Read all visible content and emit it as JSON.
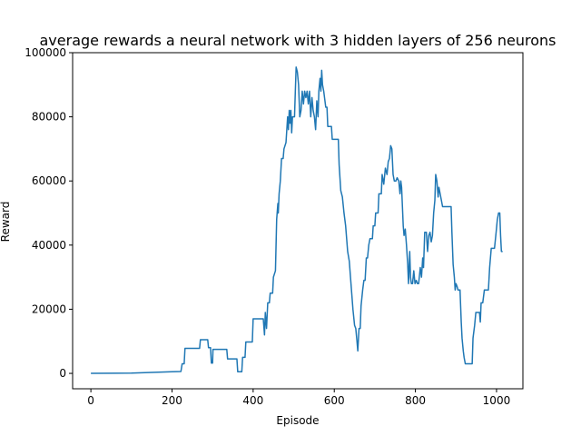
{
  "chart_data": {
    "type": "line",
    "title": "average rewards a neural network with 3 hidden layers of 256 neurons",
    "xlabel": "Episode",
    "ylabel": "Reward",
    "xlim": [
      -45,
      1065
    ],
    "ylim": [
      -4800,
      100000
    ],
    "xticks": [
      0,
      200,
      400,
      600,
      800,
      1000
    ],
    "xtick_labels": [
      "0",
      "200",
      "400",
      "600",
      "800",
      "1000"
    ],
    "yticks": [
      0,
      20000,
      40000,
      60000,
      80000,
      100000
    ],
    "ytick_labels": [
      "0",
      "20000",
      "40000",
      "60000",
      "80000",
      "100000"
    ],
    "grid": false,
    "legend": "none",
    "series": [
      {
        "color": "#1f77b4",
        "points": [
          [
            0,
            0
          ],
          [
            100,
            100
          ],
          [
            200,
            500
          ],
          [
            222,
            600
          ],
          [
            225,
            3000
          ],
          [
            230,
            3000
          ],
          [
            232,
            7800
          ],
          [
            268,
            7800
          ],
          [
            270,
            10500
          ],
          [
            288,
            10500
          ],
          [
            290,
            8000
          ],
          [
            295,
            8000
          ],
          [
            297,
            3200
          ],
          [
            300,
            3200
          ],
          [
            301,
            7500
          ],
          [
            335,
            7500
          ],
          [
            337,
            4500
          ],
          [
            360,
            4500
          ],
          [
            362,
            500
          ],
          [
            372,
            500
          ],
          [
            374,
            5000
          ],
          [
            380,
            5000
          ],
          [
            382,
            9800
          ],
          [
            398,
            9800
          ],
          [
            400,
            17000
          ],
          [
            425,
            17000
          ],
          [
            428,
            12000
          ],
          [
            430,
            19000
          ],
          [
            433,
            14000
          ],
          [
            436,
            22000
          ],
          [
            440,
            22000
          ],
          [
            442,
            25000
          ],
          [
            448,
            25000
          ],
          [
            450,
            30000
          ],
          [
            455,
            32000
          ],
          [
            458,
            48000
          ],
          [
            461,
            53000
          ],
          [
            462,
            50000
          ],
          [
            464,
            56000
          ],
          [
            467,
            60000
          ],
          [
            470,
            67000
          ],
          [
            474,
            67000
          ],
          [
            476,
            70000
          ],
          [
            481,
            72000
          ],
          [
            485,
            80000
          ],
          [
            487,
            76000
          ],
          [
            489,
            82000
          ],
          [
            491,
            78000
          ],
          [
            493,
            82000
          ],
          [
            495,
            75000
          ],
          [
            497,
            80000
          ],
          [
            500,
            80000
          ],
          [
            502,
            80000
          ],
          [
            504,
            88000
          ],
          [
            506,
            95500
          ],
          [
            509,
            94000
          ],
          [
            512,
            90000
          ],
          [
            515,
            80000
          ],
          [
            518,
            82000
          ],
          [
            521,
            88000
          ],
          [
            524,
            84000
          ],
          [
            527,
            88000
          ],
          [
            530,
            86000
          ],
          [
            533,
            88000
          ],
          [
            536,
            84000
          ],
          [
            539,
            88000
          ],
          [
            542,
            80000
          ],
          [
            545,
            86000
          ],
          [
            548,
            82000
          ],
          [
            551,
            80000
          ],
          [
            554,
            76000
          ],
          [
            557,
            85000
          ],
          [
            560,
            80000
          ],
          [
            562,
            88000
          ],
          [
            565,
            92000
          ],
          [
            567,
            88000
          ],
          [
            569,
            94500
          ],
          [
            571,
            90000
          ],
          [
            574,
            88000
          ],
          [
            576,
            86000
          ],
          [
            579,
            83000
          ],
          [
            582,
            83000
          ],
          [
            584,
            77000
          ],
          [
            593,
            77000
          ],
          [
            595,
            73000
          ],
          [
            610,
            73000
          ],
          [
            612,
            65000
          ],
          [
            616,
            57000
          ],
          [
            620,
            55000
          ],
          [
            624,
            50000
          ],
          [
            628,
            46000
          ],
          [
            633,
            38000
          ],
          [
            637,
            35000
          ],
          [
            640,
            30000
          ],
          [
            643,
            25000
          ],
          [
            646,
            20000
          ],
          [
            650,
            15000
          ],
          [
            653,
            14000
          ],
          [
            656,
            10000
          ],
          [
            658,
            7000
          ],
          [
            661,
            14000
          ],
          [
            664,
            14000
          ],
          [
            666,
            21000
          ],
          [
            670,
            26000
          ],
          [
            673,
            29000
          ],
          [
            676,
            29000
          ],
          [
            679,
            36000
          ],
          [
            682,
            36000
          ],
          [
            685,
            40000
          ],
          [
            688,
            42000
          ],
          [
            694,
            42000
          ],
          [
            696,
            46000
          ],
          [
            700,
            46000
          ],
          [
            702,
            50000
          ],
          [
            708,
            50000
          ],
          [
            710,
            56000
          ],
          [
            716,
            56000
          ],
          [
            718,
            62000
          ],
          [
            722,
            59000
          ],
          [
            726,
            64000
          ],
          [
            730,
            62000
          ],
          [
            733,
            66000
          ],
          [
            736,
            67000
          ],
          [
            739,
            71000
          ],
          [
            742,
            70000
          ],
          [
            745,
            62000
          ],
          [
            748,
            60000
          ],
          [
            752,
            60000
          ],
          [
            755,
            61000
          ],
          [
            759,
            60000
          ],
          [
            762,
            56000
          ],
          [
            764,
            60000
          ],
          [
            766,
            58000
          ],
          [
            768,
            52000
          ],
          [
            770,
            46000
          ],
          [
            772,
            43000
          ],
          [
            775,
            45000
          ],
          [
            778,
            40000
          ],
          [
            781,
            34000
          ],
          [
            783,
            28000
          ],
          [
            786,
            38000
          ],
          [
            788,
            30000
          ],
          [
            790,
            28000
          ],
          [
            793,
            28000
          ],
          [
            796,
            32000
          ],
          [
            799,
            28000
          ],
          [
            802,
            29000
          ],
          [
            805,
            28000
          ],
          [
            808,
            28000
          ],
          [
            812,
            33000
          ],
          [
            815,
            30000
          ],
          [
            818,
            36000
          ],
          [
            820,
            33000
          ],
          [
            823,
            44000
          ],
          [
            827,
            44000
          ],
          [
            830,
            38000
          ],
          [
            833,
            43000
          ],
          [
            836,
            44000
          ],
          [
            839,
            41000
          ],
          [
            842,
            43000
          ],
          [
            845,
            50000
          ],
          [
            848,
            54000
          ],
          [
            850,
            62000
          ],
          [
            853,
            60000
          ],
          [
            856,
            55000
          ],
          [
            858,
            58000
          ],
          [
            861,
            56000
          ],
          [
            864,
            54000
          ],
          [
            867,
            52000
          ],
          [
            888,
            52000
          ],
          [
            890,
            44000
          ],
          [
            893,
            34000
          ],
          [
            896,
            30000
          ],
          [
            898,
            26000
          ],
          [
            900,
            28000
          ],
          [
            903,
            27000
          ],
          [
            905,
            26000
          ],
          [
            910,
            26000
          ],
          [
            913,
            16000
          ],
          [
            915,
            11000
          ],
          [
            918,
            7000
          ],
          [
            920,
            5000
          ],
          [
            923,
            3000
          ],
          [
            940,
            3000
          ],
          [
            942,
            11000
          ],
          [
            946,
            15000
          ],
          [
            949,
            19000
          ],
          [
            958,
            19000
          ],
          [
            960,
            16000
          ],
          [
            962,
            22000
          ],
          [
            966,
            22000
          ],
          [
            970,
            26000
          ],
          [
            980,
            26000
          ],
          [
            983,
            33000
          ],
          [
            987,
            39000
          ],
          [
            995,
            39000
          ],
          [
            999,
            44000
          ],
          [
            1002,
            48000
          ],
          [
            1005,
            50000
          ],
          [
            1008,
            50000
          ],
          [
            1010,
            43000
          ],
          [
            1012,
            38000
          ],
          [
            1015,
            38000
          ]
        ]
      }
    ]
  }
}
